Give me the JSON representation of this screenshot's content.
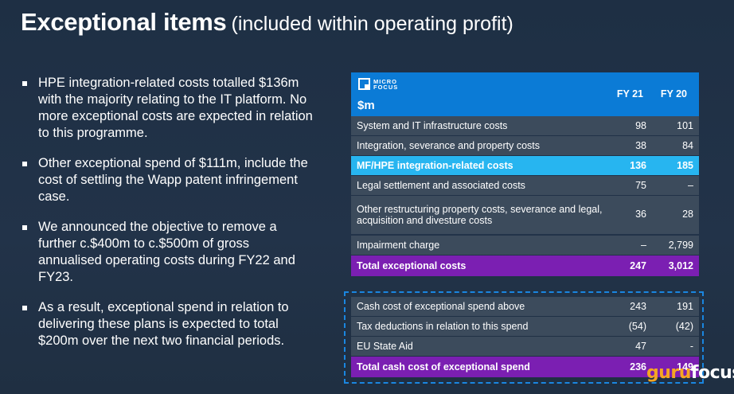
{
  "title": {
    "main": "Exceptional items",
    "sub": "(included within operating profit)"
  },
  "bullets": [
    "HPE integration-related costs totalled $136m with the majority relating to the IT platform. No more exceptional costs are expected in relation to this programme.",
    "Other exceptional spend of $111m, include the cost of settling the Wapp patent infringement case.",
    "We announced the objective to remove a further c.$400m to c.$500m of gross annualised operating costs during FY22 and FY23.",
    "As a result, exceptional spend in relation to delivering these plans is expected to total $200m over the next two financial periods."
  ],
  "table": {
    "logo_line1": "MICRO",
    "logo_line2": "FOCUS",
    "unit": "$m",
    "col1": "FY 21",
    "col2": "FY 20",
    "rows": [
      {
        "label": "System and IT infrastructure costs",
        "fy21": "98",
        "fy20": "101"
      },
      {
        "label": "Integration, severance and property costs",
        "fy21": "38",
        "fy20": "84"
      },
      {
        "label": "MF/HPE integration-related costs",
        "fy21": "136",
        "fy20": "185"
      },
      {
        "label": "Legal settlement and associated costs",
        "fy21": "75",
        "fy20": "–"
      },
      {
        "label": "Other restructuring property costs, severance and legal, acquisition and divesture costs",
        "fy21": "36",
        "fy20": "28"
      },
      {
        "label": "Impairment charge",
        "fy21": "–",
        "fy20": "2,799"
      },
      {
        "label": "Total exceptional costs",
        "fy21": "247",
        "fy20": "3,012"
      }
    ],
    "cash_rows": [
      {
        "label": "Cash cost of exceptional spend above",
        "fy21": "243",
        "fy20": "191"
      },
      {
        "label": "Tax deductions in relation to this spend",
        "fy21": "(54)",
        "fy20": "(42)"
      },
      {
        "label": "EU State Aid",
        "fy21": "47",
        "fy20": "-"
      },
      {
        "label": "Total cash cost of exceptional spend",
        "fy21": "236",
        "fy20": "149"
      }
    ]
  },
  "watermark": {
    "part1": "guru",
    "part2": "focus"
  },
  "colors": {
    "header_blue": "#0b7bd6",
    "highlight_cyan": "#27b5f0",
    "total_purple": "#7b1fb2",
    "row_gray": "#3c4b5c"
  }
}
